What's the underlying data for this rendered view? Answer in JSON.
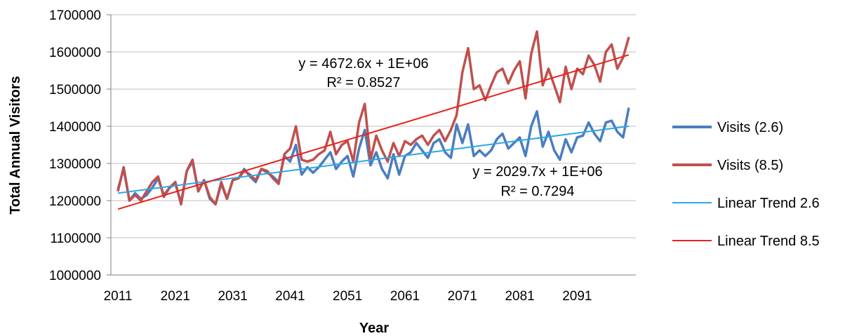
{
  "chart_data": {
    "type": "line",
    "title": "",
    "xlabel": "Year",
    "ylabel": "Total Annual Visitors",
    "xlim": [
      2011,
      2100
    ],
    "ylim": [
      1000000,
      1700000
    ],
    "x_ticks": [
      "2011",
      "2021",
      "2031",
      "2041",
      "2051",
      "2061",
      "2071",
      "2081",
      "2091"
    ],
    "y_ticks": [
      "1000000",
      "1100000",
      "1200000",
      "1300000",
      "1400000",
      "1500000",
      "1600000",
      "1700000"
    ],
    "grid": "horizontal",
    "legend_position": "right",
    "x": [
      2011,
      2012,
      2013,
      2014,
      2015,
      2016,
      2017,
      2018,
      2019,
      2020,
      2021,
      2022,
      2023,
      2024,
      2025,
      2026,
      2027,
      2028,
      2029,
      2030,
      2031,
      2032,
      2033,
      2034,
      2035,
      2036,
      2037,
      2038,
      2039,
      2040,
      2041,
      2042,
      2043,
      2044,
      2045,
      2046,
      2047,
      2048,
      2049,
      2050,
      2051,
      2052,
      2053,
      2054,
      2055,
      2056,
      2057,
      2058,
      2059,
      2060,
      2061,
      2062,
      2063,
      2064,
      2065,
      2066,
      2067,
      2068,
      2069,
      2070,
      2071,
      2072,
      2073,
      2074,
      2075,
      2076,
      2077,
      2078,
      2079,
      2080,
      2081,
      2082,
      2083,
      2084,
      2085,
      2086,
      2087,
      2088,
      2089,
      2090,
      2091,
      2092,
      2093,
      2094,
      2095,
      2096,
      2097,
      2098,
      2099,
      2100
    ],
    "series": [
      {
        "name": "Visits (2.6)",
        "color": "#4a7dc0",
        "values": [
          1230000,
          1285000,
          1200000,
          1220000,
          1205000,
          1215000,
          1235000,
          1260000,
          1215000,
          1235000,
          1245000,
          1195000,
          1280000,
          1305000,
          1225000,
          1255000,
          1205000,
          1190000,
          1245000,
          1205000,
          1255000,
          1260000,
          1285000,
          1265000,
          1250000,
          1285000,
          1275000,
          1265000,
          1250000,
          1320000,
          1305000,
          1350000,
          1270000,
          1290000,
          1275000,
          1290000,
          1310000,
          1330000,
          1285000,
          1305000,
          1320000,
          1265000,
          1340000,
          1390000,
          1295000,
          1330000,
          1285000,
          1260000,
          1325000,
          1270000,
          1320000,
          1330000,
          1355000,
          1335000,
          1315000,
          1355000,
          1365000,
          1330000,
          1315000,
          1405000,
          1355000,
          1405000,
          1320000,
          1335000,
          1320000,
          1335000,
          1365000,
          1380000,
          1340000,
          1355000,
          1370000,
          1320000,
          1400000,
          1440000,
          1345000,
          1385000,
          1335000,
          1310000,
          1365000,
          1330000,
          1370000,
          1375000,
          1410000,
          1380000,
          1360000,
          1410000,
          1415000,
          1385000,
          1370000,
          1450000
        ]
      },
      {
        "name": "Visits (8.5)",
        "color": "#c0504d",
        "values": [
          1225000,
          1290000,
          1200000,
          1215000,
          1200000,
          1225000,
          1250000,
          1265000,
          1210000,
          1235000,
          1250000,
          1190000,
          1280000,
          1310000,
          1225000,
          1255000,
          1210000,
          1190000,
          1250000,
          1205000,
          1255000,
          1260000,
          1280000,
          1270000,
          1255000,
          1285000,
          1280000,
          1260000,
          1245000,
          1325000,
          1340000,
          1400000,
          1310000,
          1305000,
          1310000,
          1325000,
          1335000,
          1385000,
          1325000,
          1350000,
          1360000,
          1305000,
          1410000,
          1460000,
          1310000,
          1375000,
          1335000,
          1305000,
          1355000,
          1320000,
          1360000,
          1350000,
          1365000,
          1375000,
          1350000,
          1375000,
          1390000,
          1360000,
          1390000,
          1430000,
          1545000,
          1610000,
          1500000,
          1510000,
          1470000,
          1510000,
          1545000,
          1555000,
          1515000,
          1550000,
          1575000,
          1475000,
          1595000,
          1655000,
          1510000,
          1555000,
          1510000,
          1465000,
          1560000,
          1500000,
          1555000,
          1540000,
          1590000,
          1565000,
          1520000,
          1600000,
          1620000,
          1555000,
          1585000,
          1640000
        ]
      },
      {
        "name": "Linear Trend 2.6",
        "color": "#29a8e8",
        "start": 1220000,
        "end": 1400000
      },
      {
        "name": "Linear Trend 8.5",
        "color": "#e8231f",
        "start": 1177000,
        "end": 1592000
      }
    ],
    "annotations": [
      {
        "text": "y = 4672.6x + 1E+06",
        "series": "Linear Trend 8.5",
        "line": 1
      },
      {
        "text": "R² = 0.8527",
        "series": "Linear Trend 8.5",
        "line": 2
      },
      {
        "text": "y = 2029.7x + 1E+06",
        "series": "Linear Trend 2.6",
        "line": 1
      },
      {
        "text": "R² = 0.7294",
        "series": "Linear Trend 2.6",
        "line": 2
      }
    ]
  }
}
